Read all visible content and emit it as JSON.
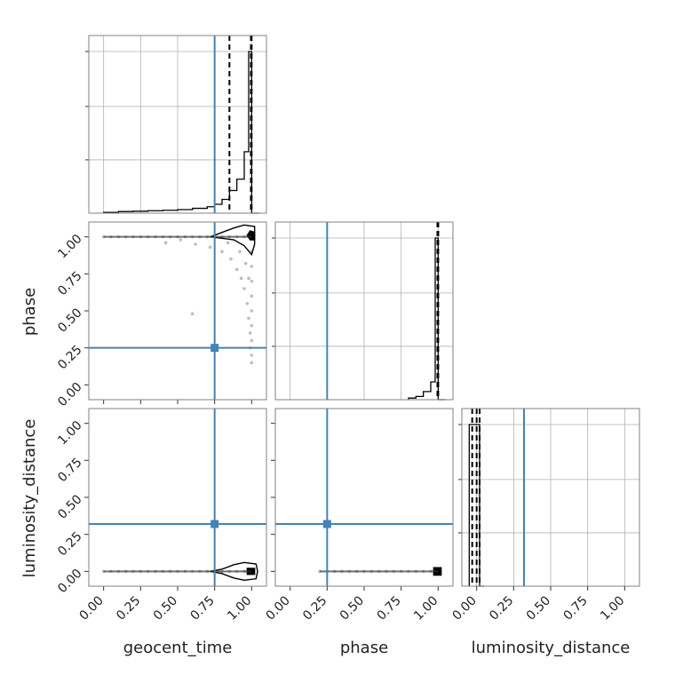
{
  "chart_data": {
    "type": "corner",
    "parameters": [
      "geocent_time",
      "phase",
      "luminosity_distance"
    ],
    "axis_range": [
      -0.1,
      1.1
    ],
    "tick_labels": [
      "0.00",
      "0.25",
      "0.50",
      "0.75",
      "1.00"
    ],
    "tick_values": [
      0.0,
      0.25,
      0.5,
      0.75,
      1.0
    ],
    "grid": true,
    "truths": {
      "geocent_time": 0.75,
      "phase": 0.25,
      "luminosity_distance": 0.32
    },
    "colors": {
      "truth": "#4682b4",
      "hist": "#000000",
      "scatter": "#888888",
      "grid": "#b0b0b0",
      "frame": "#808080"
    },
    "diagonal_histograms": {
      "geocent_time": {
        "bin_edges": [
          0.0,
          0.1,
          0.2,
          0.3,
          0.4,
          0.5,
          0.6,
          0.7,
          0.75,
          0.8,
          0.85,
          0.9,
          0.95,
          0.98,
          1.0,
          1.05
        ],
        "heights": [
          0.005,
          0.01,
          0.012,
          0.015,
          0.018,
          0.022,
          0.03,
          0.04,
          0.055,
          0.085,
          0.14,
          0.21,
          0.38,
          1.0,
          0.0
        ],
        "quantiles": [
          0.85,
          0.995,
          1.0
        ]
      },
      "phase": {
        "bin_edges": [
          0.8,
          0.85,
          0.9,
          0.95,
          0.98,
          1.0,
          1.05
        ],
        "heights": [
          0.01,
          0.02,
          0.05,
          0.11,
          1.0,
          0.0
        ],
        "quantiles": [
          0.995,
          1.0,
          1.0
        ]
      },
      "luminosity_distance": {
        "bin_edges": [
          -0.05,
          0.0,
          0.02,
          0.05
        ],
        "heights": [
          1.0,
          1.0,
          0.0
        ],
        "quantiles": [
          -0.03,
          0.0,
          0.02
        ]
      }
    },
    "panels_2d": [
      {
        "x": "geocent_time",
        "y": "phase",
        "samples": [
          [
            0.0,
            1.0
          ],
          [
            0.05,
            1.0
          ],
          [
            0.1,
            1.0
          ],
          [
            0.15,
            1.0
          ],
          [
            0.2,
            1.0
          ],
          [
            0.25,
            1.0
          ],
          [
            0.3,
            1.0
          ],
          [
            0.35,
            1.0
          ],
          [
            0.4,
            1.0
          ],
          [
            0.45,
            1.0
          ],
          [
            0.5,
            1.0
          ],
          [
            0.55,
            1.0
          ],
          [
            0.6,
            1.0
          ],
          [
            0.65,
            1.0
          ],
          [
            0.7,
            1.0
          ],
          [
            0.75,
            1.0
          ],
          [
            0.8,
            1.0
          ],
          [
            0.85,
            1.0
          ],
          [
            0.9,
            1.0
          ],
          [
            0.95,
            1.0
          ],
          [
            1.0,
            1.0
          ],
          [
            0.42,
            0.96
          ],
          [
            0.52,
            0.98
          ],
          [
            0.62,
            0.95
          ],
          [
            0.72,
            0.93
          ],
          [
            0.8,
            0.9
          ],
          [
            0.86,
            0.85
          ],
          [
            0.9,
            0.78
          ],
          [
            0.93,
            0.72
          ],
          [
            0.95,
            0.65
          ],
          [
            0.97,
            0.55
          ],
          [
            0.98,
            0.45
          ],
          [
            0.99,
            0.35
          ],
          [
            0.99,
            0.25
          ],
          [
            1.0,
            0.15
          ],
          [
            1.0,
            0.2
          ],
          [
            1.0,
            0.3
          ],
          [
            1.0,
            0.4
          ],
          [
            1.0,
            0.5
          ],
          [
            1.0,
            0.6
          ],
          [
            1.0,
            0.7
          ],
          [
            1.0,
            0.8
          ],
          [
            1.0,
            0.9
          ],
          [
            0.6,
            0.48
          ],
          [
            0.84,
            0.96
          ],
          [
            0.92,
            0.9
          ],
          [
            0.96,
            0.82
          ],
          [
            0.98,
            0.72
          ]
        ],
        "contours": [
          [
            [
              0.72,
              1.0
            ],
            [
              0.8,
              1.03
            ],
            [
              0.88,
              1.06
            ],
            [
              0.95,
              1.08
            ],
            [
              1.02,
              1.07
            ],
            [
              1.02,
              0.95
            ],
            [
              1.0,
              0.88
            ],
            [
              0.95,
              0.94
            ],
            [
              0.88,
              0.98
            ],
            [
              0.8,
              0.99
            ],
            [
              0.72,
              1.0
            ]
          ],
          [
            [
              0.97,
              1.01
            ],
            [
              0.99,
              1.04
            ],
            [
              1.02,
              1.03
            ],
            [
              1.02,
              0.98
            ],
            [
              0.99,
              0.98
            ],
            [
              0.97,
              1.01
            ]
          ]
        ]
      },
      {
        "x": "geocent_time",
        "y": "luminosity_distance",
        "samples": [
          [
            0.0,
            0.0
          ],
          [
            0.05,
            0.0
          ],
          [
            0.1,
            0.0
          ],
          [
            0.15,
            0.0
          ],
          [
            0.2,
            0.0
          ],
          [
            0.25,
            0.0
          ],
          [
            0.3,
            0.0
          ],
          [
            0.35,
            0.0
          ],
          [
            0.4,
            0.0
          ],
          [
            0.45,
            0.0
          ],
          [
            0.5,
            0.0
          ],
          [
            0.55,
            0.0
          ],
          [
            0.6,
            0.0
          ],
          [
            0.65,
            0.0
          ],
          [
            0.7,
            0.0
          ],
          [
            0.75,
            0.0
          ],
          [
            0.8,
            0.0
          ],
          [
            0.85,
            0.0
          ],
          [
            0.9,
            0.0
          ],
          [
            0.95,
            0.0
          ],
          [
            1.0,
            0.0
          ]
        ],
        "contours": [
          [
            [
              0.72,
              0.0
            ],
            [
              0.8,
              -0.015
            ],
            [
              0.88,
              -0.045
            ],
            [
              0.95,
              -0.06
            ],
            [
              1.03,
              -0.05
            ],
            [
              1.04,
              0.0
            ],
            [
              1.03,
              0.05
            ],
            [
              0.95,
              0.06
            ],
            [
              0.88,
              0.045
            ],
            [
              0.8,
              0.015
            ],
            [
              0.72,
              0.0
            ]
          ],
          [
            [
              0.97,
              -0.02
            ],
            [
              1.02,
              -0.02
            ],
            [
              1.02,
              0.02
            ],
            [
              0.97,
              0.02
            ],
            [
              0.97,
              -0.02
            ]
          ]
        ]
      },
      {
        "x": "phase",
        "y": "luminosity_distance",
        "samples": [
          [
            0.2,
            0.0
          ],
          [
            0.25,
            0.0
          ],
          [
            0.3,
            0.0
          ],
          [
            0.35,
            0.0
          ],
          [
            0.4,
            0.0
          ],
          [
            0.45,
            0.0
          ],
          [
            0.5,
            0.0
          ],
          [
            0.55,
            0.0
          ],
          [
            0.6,
            0.0
          ],
          [
            0.65,
            0.0
          ],
          [
            0.7,
            0.0
          ],
          [
            0.75,
            0.0
          ],
          [
            0.8,
            0.0
          ],
          [
            0.85,
            0.0
          ],
          [
            0.9,
            0.0
          ],
          [
            0.95,
            0.0
          ],
          [
            1.0,
            0.0
          ]
        ],
        "contours": [
          [
            [
              0.97,
              -0.025
            ],
            [
              1.02,
              -0.025
            ],
            [
              1.02,
              0.025
            ],
            [
              0.97,
              0.025
            ],
            [
              0.97,
              -0.025
            ]
          ]
        ]
      }
    ]
  }
}
